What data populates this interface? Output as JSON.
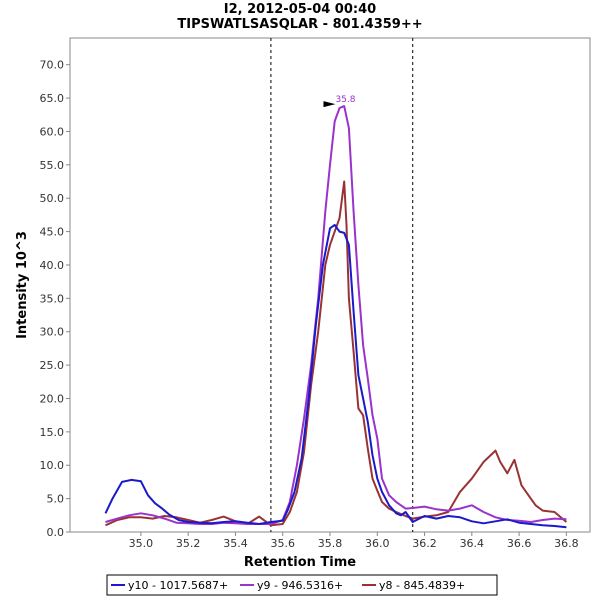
{
  "chart_data": {
    "type": "line",
    "title_line1": "I2, 2012-05-04 00:40",
    "title_line2": "TIPSWATLSASQLAR - 801.4359++",
    "xlabel": "Retention Time",
    "ylabel": "Intensity 10^3",
    "xlim": [
      34.7,
      36.9
    ],
    "ylim": [
      0,
      74
    ],
    "xticks": [
      "35.0",
      "35.2",
      "35.4",
      "35.6",
      "35.8",
      "36.0",
      "36.2",
      "36.4",
      "36.6",
      "36.8"
    ],
    "xtick_values": [
      35.0,
      35.2,
      35.4,
      35.6,
      35.8,
      36.0,
      36.2,
      36.4,
      36.6,
      36.8
    ],
    "yticks": [
      "0.0",
      "5.0",
      "10.0",
      "15.0",
      "20.0",
      "25.0",
      "30.0",
      "35.0",
      "40.0",
      "45.0",
      "50.0",
      "55.0",
      "60.0",
      "65.0",
      "70.0"
    ],
    "ytick_values": [
      0,
      5,
      10,
      15,
      20,
      25,
      30,
      35,
      40,
      45,
      50,
      55,
      60,
      65,
      70
    ],
    "vlines": [
      35.55,
      36.15
    ],
    "peak_annotation": {
      "label": "35.8",
      "x": 35.84,
      "y": 63.8,
      "color": "#9933cc"
    },
    "legend_placement": "bottom-center",
    "series": [
      {
        "name": "y10 - 1017.5687+",
        "color": "#1a1acc",
        "x": [
          34.85,
          34.88,
          34.92,
          34.96,
          35.0,
          35.03,
          35.06,
          35.09,
          35.12,
          35.16,
          35.2,
          35.25,
          35.3,
          35.35,
          35.4,
          35.45,
          35.5,
          35.55,
          35.6,
          35.62,
          35.65,
          35.68,
          35.71,
          35.74,
          35.77,
          35.8,
          35.82,
          35.84,
          35.86,
          35.88,
          35.9,
          35.92,
          35.94,
          35.96,
          35.98,
          36.0,
          36.02,
          36.05,
          36.08,
          36.1,
          36.12,
          36.15,
          36.2,
          36.25,
          36.3,
          36.35,
          36.4,
          36.45,
          36.5,
          36.55,
          36.6,
          36.65,
          36.7,
          36.75,
          36.8
        ],
        "y": [
          2.8,
          5.0,
          7.5,
          7.8,
          7.6,
          5.5,
          4.3,
          3.5,
          2.6,
          1.8,
          1.5,
          1.4,
          1.3,
          1.5,
          1.6,
          1.4,
          1.2,
          1.5,
          1.7,
          3.2,
          6.0,
          11.0,
          20.0,
          31.0,
          40.0,
          45.5,
          46.0,
          45.0,
          44.8,
          43.0,
          33.0,
          23.5,
          20.0,
          16.5,
          11.5,
          8.0,
          6.0,
          4.0,
          2.8,
          2.5,
          3.0,
          1.5,
          2.4,
          2.0,
          2.4,
          2.2,
          1.6,
          1.3,
          1.6,
          1.9,
          1.4,
          1.2,
          1.0,
          0.9,
          0.7
        ]
      },
      {
        "name": "y9 - 946.5316+",
        "color": "#9933cc",
        "x": [
          34.85,
          34.9,
          34.95,
          35.0,
          35.05,
          35.1,
          35.15,
          35.2,
          35.25,
          35.3,
          35.35,
          35.4,
          35.45,
          35.5,
          35.55,
          35.6,
          35.63,
          35.66,
          35.69,
          35.72,
          35.75,
          35.78,
          35.8,
          35.82,
          35.84,
          35.86,
          35.88,
          35.9,
          35.92,
          35.94,
          35.96,
          35.98,
          36.0,
          36.02,
          36.05,
          36.08,
          36.1,
          36.12,
          36.15,
          36.2,
          36.25,
          36.3,
          36.35,
          36.4,
          36.45,
          36.5,
          36.55,
          36.6,
          36.65,
          36.7,
          36.75,
          36.8
        ],
        "y": [
          1.5,
          2.0,
          2.5,
          2.8,
          2.5,
          2.0,
          1.4,
          1.3,
          1.2,
          1.2,
          1.4,
          1.3,
          1.2,
          1.2,
          1.2,
          1.8,
          4.5,
          10.0,
          17.0,
          25.0,
          35.0,
          48.0,
          55.0,
          61.5,
          63.5,
          63.8,
          60.5,
          48.0,
          37.0,
          28.0,
          23.0,
          17.5,
          14.0,
          8.0,
          5.5,
          4.5,
          4.0,
          3.5,
          3.6,
          3.8,
          3.4,
          3.2,
          3.5,
          4.0,
          3.0,
          2.2,
          1.8,
          1.7,
          1.5,
          1.8,
          2.0,
          1.9
        ]
      },
      {
        "name": "y8 - 845.4839+",
        "color": "#993333",
        "x": [
          34.85,
          34.9,
          34.95,
          35.0,
          35.05,
          35.1,
          35.15,
          35.2,
          35.25,
          35.3,
          35.35,
          35.4,
          35.45,
          35.5,
          35.55,
          35.6,
          35.63,
          35.66,
          35.69,
          35.72,
          35.75,
          35.78,
          35.8,
          35.82,
          35.84,
          35.86,
          35.87,
          35.88,
          35.9,
          35.92,
          35.94,
          35.96,
          35.98,
          36.0,
          36.02,
          36.05,
          36.08,
          36.12,
          36.15,
          36.2,
          36.25,
          36.3,
          36.35,
          36.4,
          36.45,
          36.5,
          36.52,
          36.55,
          36.58,
          36.61,
          36.64,
          36.67,
          36.7,
          36.75,
          36.8
        ],
        "y": [
          1.0,
          1.8,
          2.2,
          2.2,
          2.0,
          2.4,
          2.2,
          1.8,
          1.4,
          1.8,
          2.3,
          1.6,
          1.2,
          2.3,
          1.0,
          1.2,
          3.0,
          6.0,
          12.0,
          22.0,
          30.0,
          40.0,
          43.0,
          45.0,
          47.0,
          52.5,
          46.0,
          35.0,
          27.0,
          18.5,
          17.5,
          12.5,
          8.0,
          6.2,
          4.5,
          3.5,
          3.0,
          2.4,
          2.0,
          2.3,
          2.5,
          3.0,
          6.0,
          8.0,
          10.5,
          12.2,
          10.5,
          8.8,
          10.8,
          7.0,
          5.5,
          4.0,
          3.2,
          3.0,
          1.5
        ]
      }
    ]
  }
}
